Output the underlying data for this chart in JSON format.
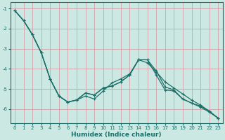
{
  "xlabel": "Humidex (Indice chaleur)",
  "bg_color": "#cce8e3",
  "grid_color": "#d4a0aa",
  "line_color": "#1a7068",
  "spine_color": "#1a7068",
  "xlim": [
    -0.5,
    23.5
  ],
  "ylim": [
    -6.7,
    -0.7
  ],
  "xticks": [
    0,
    1,
    2,
    3,
    4,
    5,
    6,
    7,
    8,
    9,
    10,
    11,
    12,
    13,
    14,
    15,
    16,
    17,
    18,
    19,
    20,
    21,
    22,
    23
  ],
  "yticks": [
    -1,
    -2,
    -3,
    -4,
    -5,
    -6
  ],
  "line1_x": [
    0,
    1,
    2,
    3,
    4,
    5,
    6,
    7,
    8,
    9,
    10,
    11,
    12,
    13,
    14,
    15,
    16,
    17,
    18,
    19,
    20,
    21,
    22,
    23
  ],
  "line1_y": [
    -1.1,
    -1.6,
    -2.3,
    -3.2,
    -4.5,
    -5.35,
    -5.65,
    -5.55,
    -5.2,
    -5.3,
    -4.95,
    -4.85,
    -4.65,
    -4.3,
    -3.55,
    -3.55,
    -4.1,
    -4.9,
    -5.05,
    -5.5,
    -5.7,
    -5.85,
    -6.1,
    -6.45
  ],
  "line2_x": [
    0,
    1,
    2,
    3,
    4,
    5,
    6,
    7,
    8,
    9,
    10,
    11,
    12,
    13,
    14,
    15,
    16,
    17,
    18,
    19,
    20,
    21,
    22,
    23
  ],
  "line2_y": [
    -1.1,
    -1.6,
    -2.3,
    -3.2,
    -4.5,
    -5.35,
    -5.65,
    -5.55,
    -5.2,
    -5.3,
    -4.95,
    -4.85,
    -4.65,
    -4.3,
    -3.55,
    -3.7,
    -4.15,
    -4.65,
    -4.95,
    -5.25,
    -5.55,
    -5.8,
    -6.1,
    -6.45
  ],
  "line3_x": [
    0,
    1,
    2,
    3,
    4,
    5,
    6,
    7,
    8,
    9,
    10,
    11,
    12,
    13,
    14,
    15,
    16,
    17,
    18,
    19,
    20,
    21,
    22,
    23
  ],
  "line3_y": [
    -1.1,
    -1.6,
    -2.3,
    -3.2,
    -4.5,
    -5.35,
    -5.65,
    -5.55,
    -5.35,
    -5.5,
    -5.1,
    -4.7,
    -4.5,
    -4.25,
    -3.55,
    -3.55,
    -4.3,
    -5.05,
    -5.1,
    -5.5,
    -5.7,
    -5.9,
    -6.15,
    -6.45
  ],
  "tick_fontsize": 5.0,
  "xlabel_fontsize": 6.5,
  "marker_size": 3.0,
  "linewidth": 0.9
}
